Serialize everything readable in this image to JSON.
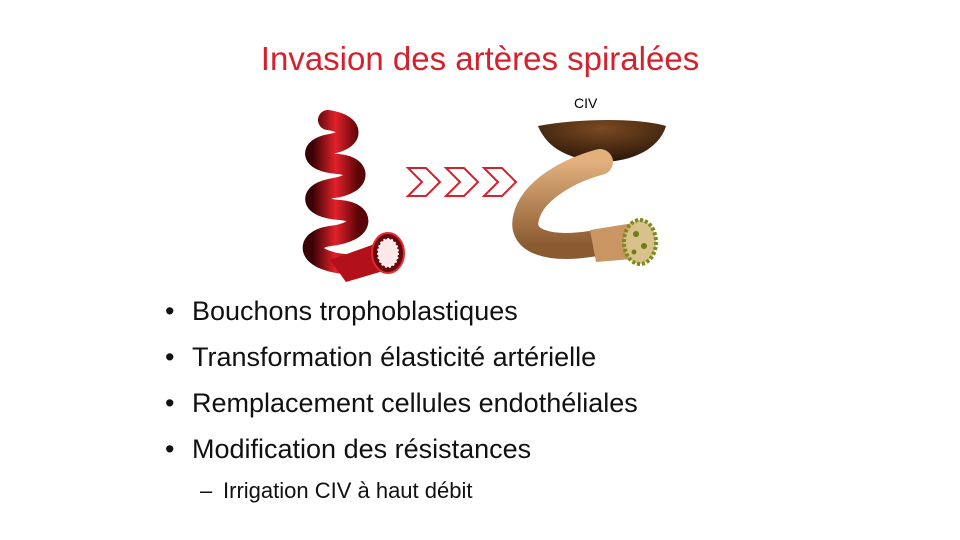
{
  "slide": {
    "title": "Invasion des artères spiralées",
    "image_label": "CIV",
    "bullets": [
      "Bouchons trophoblastiques",
      "Transformation élasticité artérielle",
      "Remplacement cellules endothéliales",
      "Modification des résistances"
    ],
    "sub_bullet": "Irrigation CIV à haut débit",
    "bullet_marker": "•",
    "sub_marker": "–"
  },
  "colors": {
    "title": "#d4212b",
    "artery_red": "#c0141c",
    "chevron": "#d4212b",
    "trophoblast_brown": "#8a5a2b",
    "tissue_tan": "#c99563"
  },
  "icons": [
    "spiral-artery-normal",
    "chevron-arrows-icon",
    "spiral-artery-remodeled"
  ]
}
